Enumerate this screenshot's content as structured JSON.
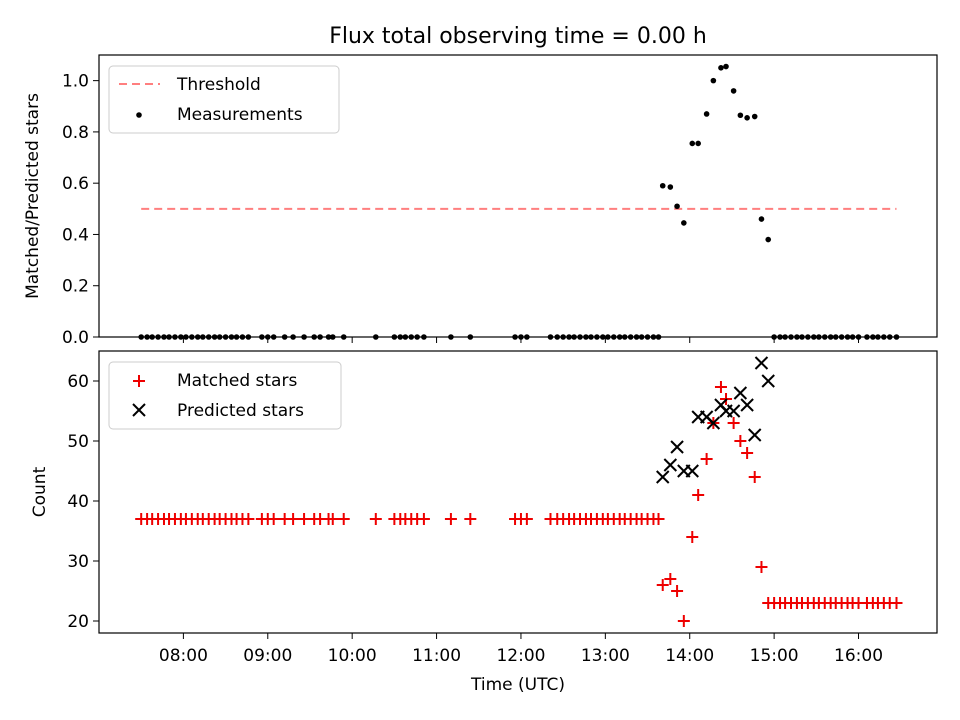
{
  "chart_data": [
    {
      "type": "scatter",
      "title": "Flux total observing time = 0.00 h",
      "xlabel": "",
      "ylabel": "Matched/Predicted stars",
      "ylim": [
        0,
        1.1
      ],
      "yticks": [
        "0.0",
        "0.2",
        "0.4",
        "0.6",
        "0.8",
        "1.0"
      ],
      "ytick_values": [
        0,
        0.2,
        0.4,
        0.6,
        0.8,
        1.0
      ],
      "legend": {
        "placement": "top-left",
        "entries": [
          "Threshold",
          "Measurements"
        ]
      },
      "threshold": {
        "name": "Threshold",
        "value": 0.5,
        "x_start": 7.5,
        "x_end": 16.45,
        "color": "#ff7f7f"
      },
      "series": [
        {
          "name": "Measurements",
          "color": "#000000",
          "points": [
            [
              7.5,
              0
            ],
            [
              7.57,
              0
            ],
            [
              7.63,
              0
            ],
            [
              7.7,
              0
            ],
            [
              7.77,
              0
            ],
            [
              7.83,
              0
            ],
            [
              7.9,
              0
            ],
            [
              7.97,
              0
            ],
            [
              8.03,
              0
            ],
            [
              8.1,
              0
            ],
            [
              8.17,
              0
            ],
            [
              8.23,
              0
            ],
            [
              8.3,
              0
            ],
            [
              8.37,
              0
            ],
            [
              8.43,
              0
            ],
            [
              8.5,
              0
            ],
            [
              8.57,
              0
            ],
            [
              8.63,
              0
            ],
            [
              8.7,
              0
            ],
            [
              8.77,
              0
            ],
            [
              8.93,
              0
            ],
            [
              9.0,
              0
            ],
            [
              9.07,
              0
            ],
            [
              9.2,
              0
            ],
            [
              9.3,
              0
            ],
            [
              9.43,
              0
            ],
            [
              9.55,
              0
            ],
            [
              9.62,
              0
            ],
            [
              9.72,
              0
            ],
            [
              9.77,
              0
            ],
            [
              9.9,
              0
            ],
            [
              10.28,
              0
            ],
            [
              10.5,
              0
            ],
            [
              10.57,
              0
            ],
            [
              10.63,
              0
            ],
            [
              10.7,
              0
            ],
            [
              10.77,
              0
            ],
            [
              10.85,
              0
            ],
            [
              11.17,
              0
            ],
            [
              11.4,
              0
            ],
            [
              11.93,
              0
            ],
            [
              12.0,
              0
            ],
            [
              12.07,
              0
            ],
            [
              12.35,
              0
            ],
            [
              12.43,
              0
            ],
            [
              12.5,
              0
            ],
            [
              12.57,
              0
            ],
            [
              12.63,
              0
            ],
            [
              12.7,
              0
            ],
            [
              12.77,
              0
            ],
            [
              12.83,
              0
            ],
            [
              12.9,
              0
            ],
            [
              12.97,
              0
            ],
            [
              13.03,
              0
            ],
            [
              13.1,
              0
            ],
            [
              13.17,
              0
            ],
            [
              13.23,
              0
            ],
            [
              13.3,
              0
            ],
            [
              13.37,
              0
            ],
            [
              13.43,
              0
            ],
            [
              13.5,
              0
            ],
            [
              13.57,
              0
            ],
            [
              13.63,
              0
            ],
            [
              13.68,
              0.59
            ],
            [
              13.77,
              0.585
            ],
            [
              13.85,
              0.51
            ],
            [
              13.93,
              0.445
            ],
            [
              14.03,
              0.755
            ],
            [
              14.1,
              0.755
            ],
            [
              14.2,
              0.87
            ],
            [
              14.28,
              1.0
            ],
            [
              14.37,
              1.05
            ],
            [
              14.43,
              1.055
            ],
            [
              14.52,
              0.96
            ],
            [
              14.6,
              0.865
            ],
            [
              14.68,
              0.855
            ],
            [
              14.77,
              0.86
            ],
            [
              14.85,
              0.46
            ],
            [
              14.93,
              0.38
            ],
            [
              15.0,
              0
            ],
            [
              15.07,
              0
            ],
            [
              15.13,
              0
            ],
            [
              15.2,
              0
            ],
            [
              15.27,
              0
            ],
            [
              15.33,
              0
            ],
            [
              15.4,
              0
            ],
            [
              15.47,
              0
            ],
            [
              15.53,
              0
            ],
            [
              15.6,
              0
            ],
            [
              15.67,
              0
            ],
            [
              15.73,
              0
            ],
            [
              15.8,
              0
            ],
            [
              15.87,
              0
            ],
            [
              15.93,
              0
            ],
            [
              16.0,
              0
            ],
            [
              16.1,
              0
            ],
            [
              16.17,
              0
            ],
            [
              16.23,
              0
            ],
            [
              16.3,
              0
            ],
            [
              16.37,
              0
            ],
            [
              16.45,
              0
            ]
          ]
        }
      ]
    },
    {
      "type": "scatter",
      "title": "",
      "xlabel": "Time (UTC)",
      "ylabel": "Count",
      "xlim": [
        7.0,
        16.93
      ],
      "ylim": [
        18,
        65
      ],
      "xticks": [
        "08:00",
        "09:00",
        "10:00",
        "11:00",
        "12:00",
        "13:00",
        "14:00",
        "15:00",
        "16:00"
      ],
      "xtick_values": [
        8,
        9,
        10,
        11,
        12,
        13,
        14,
        15,
        16
      ],
      "yticks": [
        "20",
        "30",
        "40",
        "50",
        "60"
      ],
      "ytick_values": [
        20,
        30,
        40,
        50,
        60
      ],
      "legend": {
        "placement": "top-left",
        "entries": [
          "Matched stars",
          "Predicted stars"
        ]
      },
      "series": [
        {
          "name": "Matched stars",
          "marker": "plus",
          "color": "#ee0000",
          "points": [
            [
              7.5,
              37
            ],
            [
              7.57,
              37
            ],
            [
              7.63,
              37
            ],
            [
              7.7,
              37
            ],
            [
              7.77,
              37
            ],
            [
              7.83,
              37
            ],
            [
              7.9,
              37
            ],
            [
              7.97,
              37
            ],
            [
              8.03,
              37
            ],
            [
              8.1,
              37
            ],
            [
              8.17,
              37
            ],
            [
              8.23,
              37
            ],
            [
              8.3,
              37
            ],
            [
              8.37,
              37
            ],
            [
              8.43,
              37
            ],
            [
              8.5,
              37
            ],
            [
              8.57,
              37
            ],
            [
              8.63,
              37
            ],
            [
              8.7,
              37
            ],
            [
              8.77,
              37
            ],
            [
              8.93,
              37
            ],
            [
              9.0,
              37
            ],
            [
              9.07,
              37
            ],
            [
              9.2,
              37
            ],
            [
              9.3,
              37
            ],
            [
              9.43,
              37
            ],
            [
              9.55,
              37
            ],
            [
              9.62,
              37
            ],
            [
              9.72,
              37
            ],
            [
              9.77,
              37
            ],
            [
              9.9,
              37
            ],
            [
              10.28,
              37
            ],
            [
              10.5,
              37
            ],
            [
              10.57,
              37
            ],
            [
              10.63,
              37
            ],
            [
              10.7,
              37
            ],
            [
              10.77,
              37
            ],
            [
              10.85,
              37
            ],
            [
              11.17,
              37
            ],
            [
              11.4,
              37
            ],
            [
              11.93,
              37
            ],
            [
              12.0,
              37
            ],
            [
              12.07,
              37
            ],
            [
              12.35,
              37
            ],
            [
              12.43,
              37
            ],
            [
              12.5,
              37
            ],
            [
              12.57,
              37
            ],
            [
              12.63,
              37
            ],
            [
              12.7,
              37
            ],
            [
              12.77,
              37
            ],
            [
              12.83,
              37
            ],
            [
              12.9,
              37
            ],
            [
              12.97,
              37
            ],
            [
              13.03,
              37
            ],
            [
              13.1,
              37
            ],
            [
              13.17,
              37
            ],
            [
              13.23,
              37
            ],
            [
              13.3,
              37
            ],
            [
              13.37,
              37
            ],
            [
              13.43,
              37
            ],
            [
              13.5,
              37
            ],
            [
              13.57,
              37
            ],
            [
              13.63,
              37
            ],
            [
              13.68,
              26
            ],
            [
              13.77,
              27
            ],
            [
              13.85,
              25
            ],
            [
              13.93,
              20
            ],
            [
              14.03,
              34
            ],
            [
              14.1,
              41
            ],
            [
              14.2,
              47
            ],
            [
              14.28,
              53
            ],
            [
              14.37,
              59
            ],
            [
              14.43,
              57
            ],
            [
              14.52,
              53
            ],
            [
              14.6,
              50
            ],
            [
              14.68,
              48
            ],
            [
              14.77,
              44
            ],
            [
              14.85,
              29
            ],
            [
              14.93,
              23
            ],
            [
              15.0,
              23
            ],
            [
              15.07,
              23
            ],
            [
              15.13,
              23
            ],
            [
              15.2,
              23
            ],
            [
              15.27,
              23
            ],
            [
              15.33,
              23
            ],
            [
              15.4,
              23
            ],
            [
              15.47,
              23
            ],
            [
              15.53,
              23
            ],
            [
              15.6,
              23
            ],
            [
              15.67,
              23
            ],
            [
              15.73,
              23
            ],
            [
              15.8,
              23
            ],
            [
              15.87,
              23
            ],
            [
              15.93,
              23
            ],
            [
              16.0,
              23
            ],
            [
              16.1,
              23
            ],
            [
              16.17,
              23
            ],
            [
              16.23,
              23
            ],
            [
              16.3,
              23
            ],
            [
              16.37,
              23
            ],
            [
              16.45,
              23
            ]
          ]
        },
        {
          "name": "Predicted stars",
          "marker": "x",
          "color": "#000000",
          "points": [
            [
              13.68,
              44
            ],
            [
              13.77,
              46
            ],
            [
              13.85,
              49
            ],
            [
              13.93,
              45
            ],
            [
              14.03,
              45
            ],
            [
              14.1,
              54
            ],
            [
              14.2,
              54
            ],
            [
              14.28,
              53
            ],
            [
              14.37,
              56
            ],
            [
              14.43,
              55
            ],
            [
              14.52,
              55
            ],
            [
              14.6,
              58
            ],
            [
              14.68,
              56
            ],
            [
              14.77,
              51
            ],
            [
              14.85,
              63
            ],
            [
              14.93,
              60
            ]
          ]
        }
      ]
    }
  ]
}
